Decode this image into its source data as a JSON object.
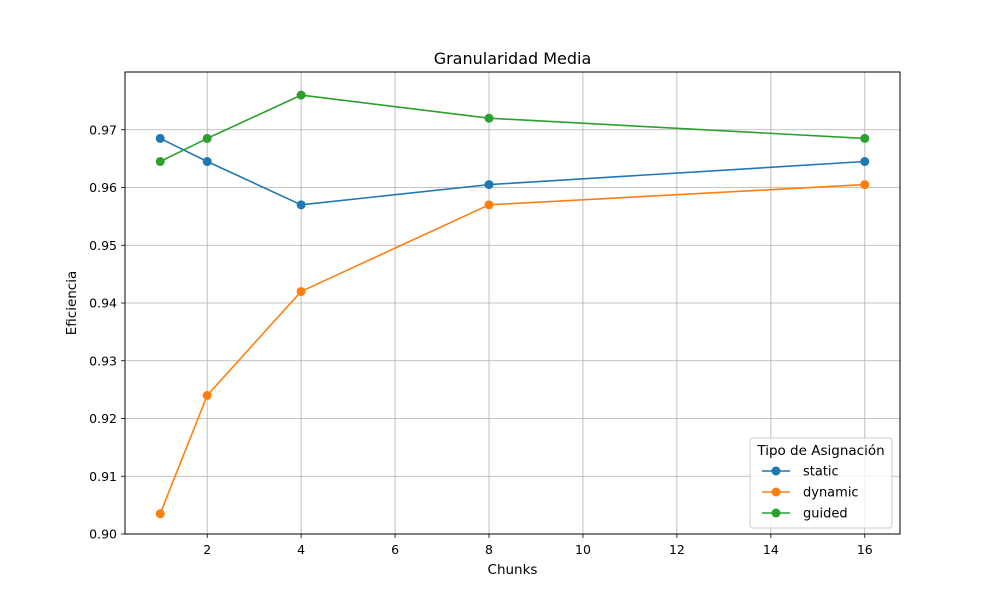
{
  "chart_data": {
    "type": "line",
    "title": "Granularidad Media",
    "xlabel": "Chunks",
    "ylabel": "Eficiencia",
    "xlim": [
      0.25,
      16.75
    ],
    "ylim": [
      0.9,
      0.98
    ],
    "xticks": [
      2,
      4,
      6,
      8,
      10,
      12,
      14,
      16
    ],
    "xtick_labels": [
      "2",
      "4",
      "6",
      "8",
      "10",
      "12",
      "14",
      "16"
    ],
    "yticks": [
      0.9,
      0.91,
      0.92,
      0.93,
      0.94,
      0.95,
      0.96,
      0.97
    ],
    "ytick_labels": [
      "0.90",
      "0.91",
      "0.92",
      "0.93",
      "0.94",
      "0.95",
      "0.96",
      "0.97"
    ],
    "grid": true,
    "legend": {
      "title": "Tipo de Asignación",
      "placement": "lower-right"
    },
    "x": [
      1,
      2,
      4,
      8,
      16
    ],
    "series": [
      {
        "name": "static",
        "color": "#1f77b4",
        "values": [
          0.9685,
          0.9645,
          0.957,
          0.9605,
          0.9645
        ]
      },
      {
        "name": "dynamic",
        "color": "#ff7f0e",
        "values": [
          0.9035,
          0.924,
          0.942,
          0.957,
          0.9605
        ]
      },
      {
        "name": "guided",
        "color": "#2ca02c",
        "values": [
          0.9645,
          0.9685,
          0.976,
          0.972,
          0.9685
        ]
      }
    ]
  }
}
